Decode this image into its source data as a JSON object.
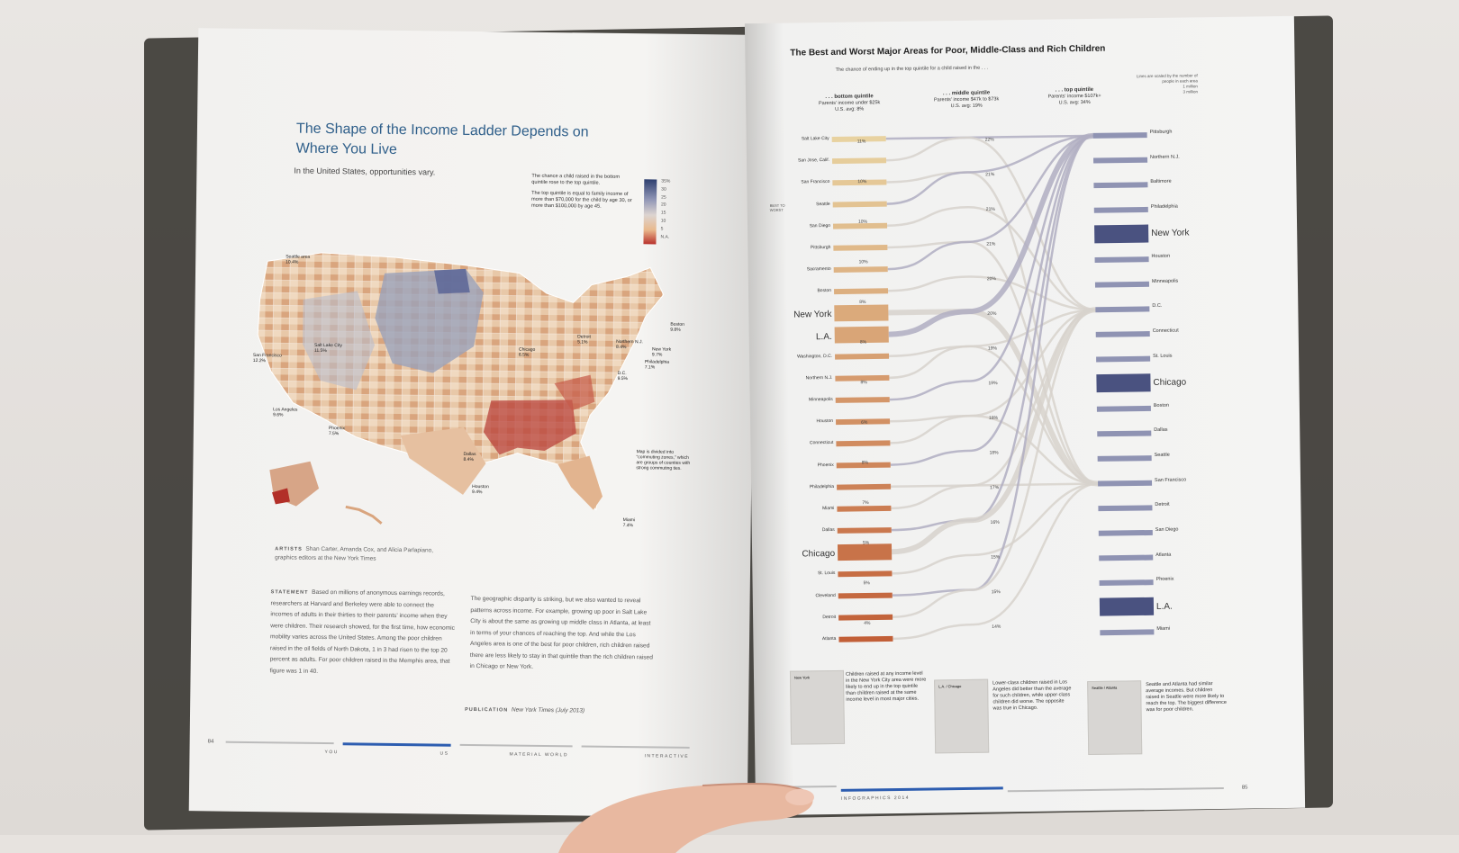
{
  "left_page": {
    "title": "The Shape of the Income Ladder Depends on Where You Live",
    "subtitle": "In the United States, opportunities vary.",
    "legend": {
      "text1": "The chance a child raised in the bottom quintile rose to the top quintile.",
      "text2": "The top quintile is equal to family income of more than $70,000 for the child by age 30, or more than $100,000 by age 45.",
      "ticks": [
        "35%",
        "30",
        "25",
        "20",
        "15",
        "10",
        "5",
        "N.A."
      ]
    },
    "map_labels": [
      {
        "name": "Seattle area",
        "value": "10.4%"
      },
      {
        "name": "Salt Lake City",
        "value": "11.5%"
      },
      {
        "name": "San Francisco",
        "value": "12.2%"
      },
      {
        "name": "Los Angeles",
        "value": "9.6%"
      },
      {
        "name": "Phoenix",
        "value": "7.5%"
      },
      {
        "name": "Chicago",
        "value": "6.5%"
      },
      {
        "name": "Detroit",
        "value": "5.1%"
      },
      {
        "name": "Northern N.J.",
        "value": "8.4%"
      },
      {
        "name": "New York",
        "value": "9.7%"
      },
      {
        "name": "Boston",
        "value": "9.8%"
      },
      {
        "name": "Philadelphia",
        "value": "7.1%"
      },
      {
        "name": "D.C.",
        "value": "9.5%"
      },
      {
        "name": "Dallas",
        "value": "8.4%"
      },
      {
        "name": "Houston",
        "value": "9.4%"
      },
      {
        "name": "Miami",
        "value": "7.4%"
      }
    ],
    "map_note": "Map is divided into \"commuting zones,\" which are groups of counties with strong commuting ties.",
    "artists_label": "ARTISTS",
    "artists": "Shan Carter, Amanda Cox, and Alicia Parlapiano, graphics editors at the New York Times",
    "statement_label": "STATEMENT",
    "statement": "Based on millions of anonymous earnings records, researchers at Harvard and Berkeley were able to connect the incomes of adults in their thirties to their parents' income when they were children. Their research showed, for the first time, how economic mobility varies across the United States. Among the poor children raised in the oil fields of North Dakota, 1 in 3 had risen to the top 20 percent as adults. For poor children raised in the Memphis area, that figure was 1 in 40.",
    "column2": "The geographic disparity is striking, but we also wanted to reveal patterns across income. For example, growing up poor in Salt Lake City is about the same as growing up middle class in Atlanta, at least in terms of your chances of reaching the top. And while the Los Angeles area is one of the best for poor children, rich children raised there are less likely to stay in that quintile than the rich children raised in Chicago or New York.",
    "publication_label": "PUBLICATION",
    "publication": "New York Times (July 2013)",
    "page_number": "84",
    "footer_tabs": [
      "YOU",
      "US",
      "MATERIAL WORLD",
      "INTERACTIVE"
    ]
  },
  "right_page": {
    "title": "The Best and Worst Major Areas for Poor, Middle-Class and Rich Children",
    "subtitle": "The chance of ending up in the top quintile for a child raised in the . . .",
    "columns": [
      {
        "head": ". . . bottom quintile",
        "sub": "Parents' income under $25k",
        "avg": "U.S. avg: 8%"
      },
      {
        "head": ". . . middle quintile",
        "sub": "Parents' income $47k to $73k",
        "avg": "U.S. avg: 19%"
      },
      {
        "head": ". . . top quintile",
        "sub": "Parents' income $107k+",
        "avg": "U.S. avg: 34%"
      }
    ],
    "lines_note": "Lines are scaled by the number of people in each area",
    "lines_legend": [
      "1 million",
      "3 million"
    ],
    "left_cities": [
      "Salt Lake City",
      "San Jose, Calif.",
      "San Francisco",
      "Seattle",
      "San Diego",
      "Pittsburgh",
      "Sacramento",
      "Boston",
      "New York",
      "L.A.",
      "Washington, D.C.",
      "Northern N.J.",
      "Minneapolis",
      "Houston",
      "Connecticut",
      "Phoenix",
      "Philadelphia",
      "Miami",
      "Dallas",
      "Chicago",
      "St. Louis",
      "Cleveland",
      "Detroit",
      "Atlanta"
    ],
    "left_pct": [
      "11%",
      "10%",
      "10%",
      "10%",
      "8%",
      "8%",
      "8%",
      "6%",
      "8%",
      "7%",
      "5%",
      "5%",
      "4%"
    ],
    "mid_pct": [
      "22%",
      "21%",
      "21%",
      "21%",
      "20%",
      "20%",
      "19%",
      "19%",
      "18%",
      "18%",
      "17%",
      "16%",
      "15%",
      "15%",
      "14%"
    ],
    "right_cities": [
      "Pittsburgh",
      "Northern N.J.",
      "Baltimore",
      "Philadelphia",
      "New York",
      "Houston",
      "Minneapolis",
      "D.C.",
      "Connecticut",
      "St. Louis",
      "Chicago",
      "Boston",
      "Dallas",
      "Seattle",
      "San Francisco",
      "Detroit",
      "San Diego",
      "Atlanta",
      "Phoenix",
      "L.A.",
      "Miami"
    ],
    "best_to_worst": "BEST TO WORST",
    "insets": [
      {
        "label": "New York",
        "text": "Children raised at any income level in the New York City area were more likely to end up in the top quintile than children raised at the same income level in most major cities."
      },
      {
        "label": "L.A. / Chicago",
        "text": "Lower-class children raised in Los Angeles did better than the average for such children, while upper-class children did worse. The opposite was true in Chicago."
      },
      {
        "label": "Seattle / Atlanta",
        "text": "Seattle and Atlanta had similar average incomes. But children raised in Seattle were more likely to reach the top. The biggest difference was for poor children."
      }
    ],
    "footer": "INFOGRAPHICS 2014",
    "page_number": "85"
  }
}
